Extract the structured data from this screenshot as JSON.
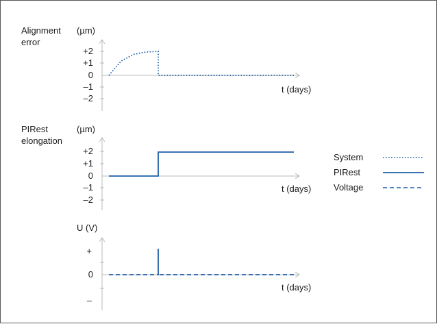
{
  "colors": {
    "trace": "#1f5fa8",
    "axis": "#b8b8b8",
    "text": "#1a1a1a",
    "border": "#555555"
  },
  "chart_data": [
    {
      "type": "line",
      "ylabel_name": [
        "Alignment",
        "error"
      ],
      "ylabel_unit": "(µm)",
      "xlabel": "t (days)",
      "ytick_labels": [
        "+2",
        "+1",
        "0",
        "–1",
        "–2"
      ],
      "ylim": [
        -2,
        2
      ],
      "series": [
        {
          "style": "dotted",
          "description": "System",
          "points": [
            [
              0,
              0
            ],
            [
              0.5,
              1.2
            ],
            [
              1,
              1.75
            ],
            [
              1.5,
              1.95
            ],
            [
              2,
              2
            ],
            [
              2,
              0
            ],
            [
              7.5,
              0
            ]
          ]
        }
      ]
    },
    {
      "type": "line",
      "ylabel_name": [
        "PIRest",
        "elongation"
      ],
      "ylabel_unit": "(µm)",
      "xlabel": "t (days)",
      "ytick_labels": [
        "+2",
        "+1",
        "0",
        "–1",
        "–2"
      ],
      "ylim": [
        -2,
        2
      ],
      "series": [
        {
          "style": "solid",
          "description": "PIRest",
          "points": [
            [
              0,
              0
            ],
            [
              2,
              0
            ],
            [
              2,
              2
            ],
            [
              7.5,
              2
            ]
          ]
        }
      ]
    },
    {
      "type": "line",
      "ylabel_name": [
        "U (V)"
      ],
      "ylabel_unit": "",
      "xlabel": "t (days)",
      "ytick_labels": [
        "+",
        "0",
        "–"
      ],
      "ylim": [
        -1,
        1
      ],
      "series": [
        {
          "style": "dashed",
          "description": "Voltage",
          "points": [
            [
              0,
              0
            ],
            [
              2,
              0
            ],
            [
              2,
              1
            ],
            [
              2,
              0
            ],
            [
              7.5,
              0
            ]
          ]
        }
      ]
    }
  ],
  "legend": [
    {
      "label": "System",
      "style": "dotted"
    },
    {
      "label": "PIRest",
      "style": "solid"
    },
    {
      "label": "Voltage",
      "style": "dashed"
    }
  ]
}
